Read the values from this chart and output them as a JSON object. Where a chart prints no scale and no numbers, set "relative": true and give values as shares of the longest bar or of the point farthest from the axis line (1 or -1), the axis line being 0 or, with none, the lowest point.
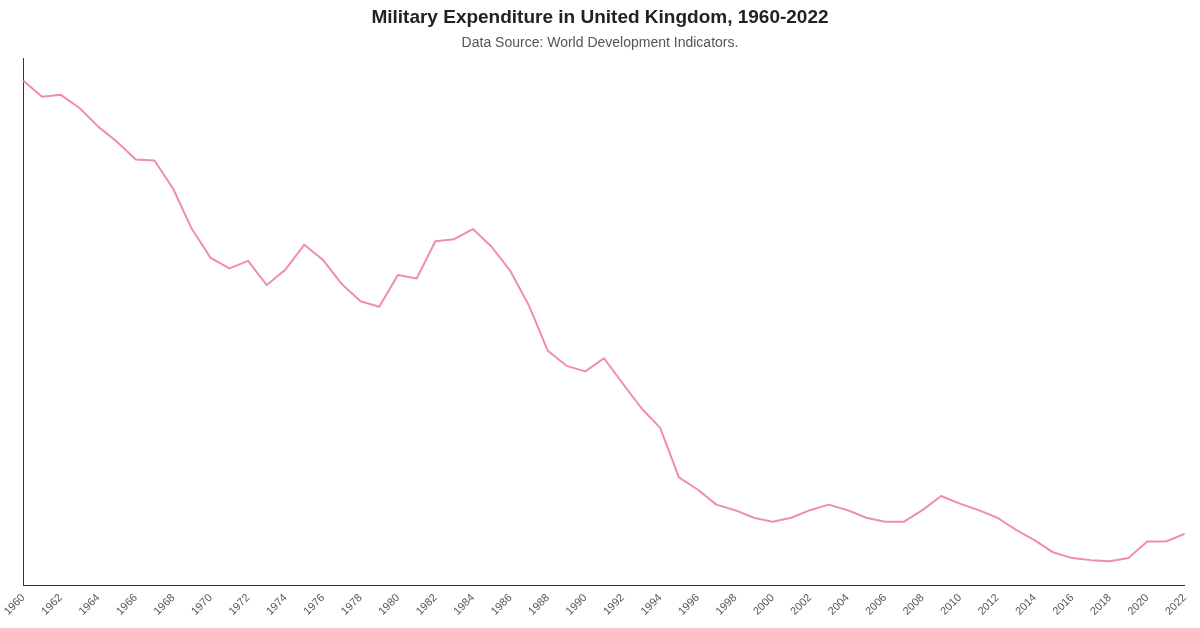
{
  "chart_data": {
    "type": "line",
    "title": "Military Expenditure in United Kingdom, 1960-2022",
    "subtitle": "Data Source: World Development Indicators.",
    "relative": true,
    "grid": false,
    "legend": false,
    "marker": "none",
    "line_style": "solid",
    "categories": [
      "1960",
      null,
      "1962",
      null,
      "1964",
      null,
      "1966",
      null,
      "1968",
      null,
      "1970",
      null,
      "1972",
      null,
      "1974",
      null,
      "1976",
      null,
      "1978",
      null,
      "1980",
      null,
      "1982",
      null,
      "1984",
      null,
      "1986",
      null,
      "1988",
      null,
      "1990",
      null,
      "1992",
      null,
      "1994",
      null,
      "1996",
      null,
      "1998",
      null,
      "2000",
      null,
      "2002",
      null,
      "2004",
      null,
      "2006",
      null,
      "2008",
      null,
      "2010",
      null,
      "2012",
      null,
      "2014",
      null,
      "2016",
      null,
      "2018",
      null,
      "2020",
      null,
      "2022"
    ],
    "series": [
      {
        "color": "#f08cb4",
        "values": [
          1,
          0.968,
          0.972,
          0.946,
          0.909,
          0.879,
          0.844,
          0.842,
          0.786,
          0.706,
          0.649,
          0.628,
          0.643,
          0.595,
          0.626,
          0.675,
          0.645,
          0.597,
          0.563,
          0.552,
          0.615,
          0.608,
          0.682,
          0.686,
          0.706,
          0.671,
          0.623,
          0.554,
          0.465,
          0.435,
          0.424,
          0.45,
          0.4,
          0.351,
          0.312,
          0.214,
          0.19,
          0.16,
          0.149,
          0.134,
          0.126,
          0.134,
          0.149,
          0.16,
          0.149,
          0.134,
          0.126,
          0.126,
          0.149,
          0.177,
          0.162,
          0.149,
          0.134,
          0.11,
          0.089,
          0.065,
          0.054,
          0.05,
          0.048,
          0.054,
          0.087,
          0.087,
          0.102
        ]
      }
    ]
  }
}
